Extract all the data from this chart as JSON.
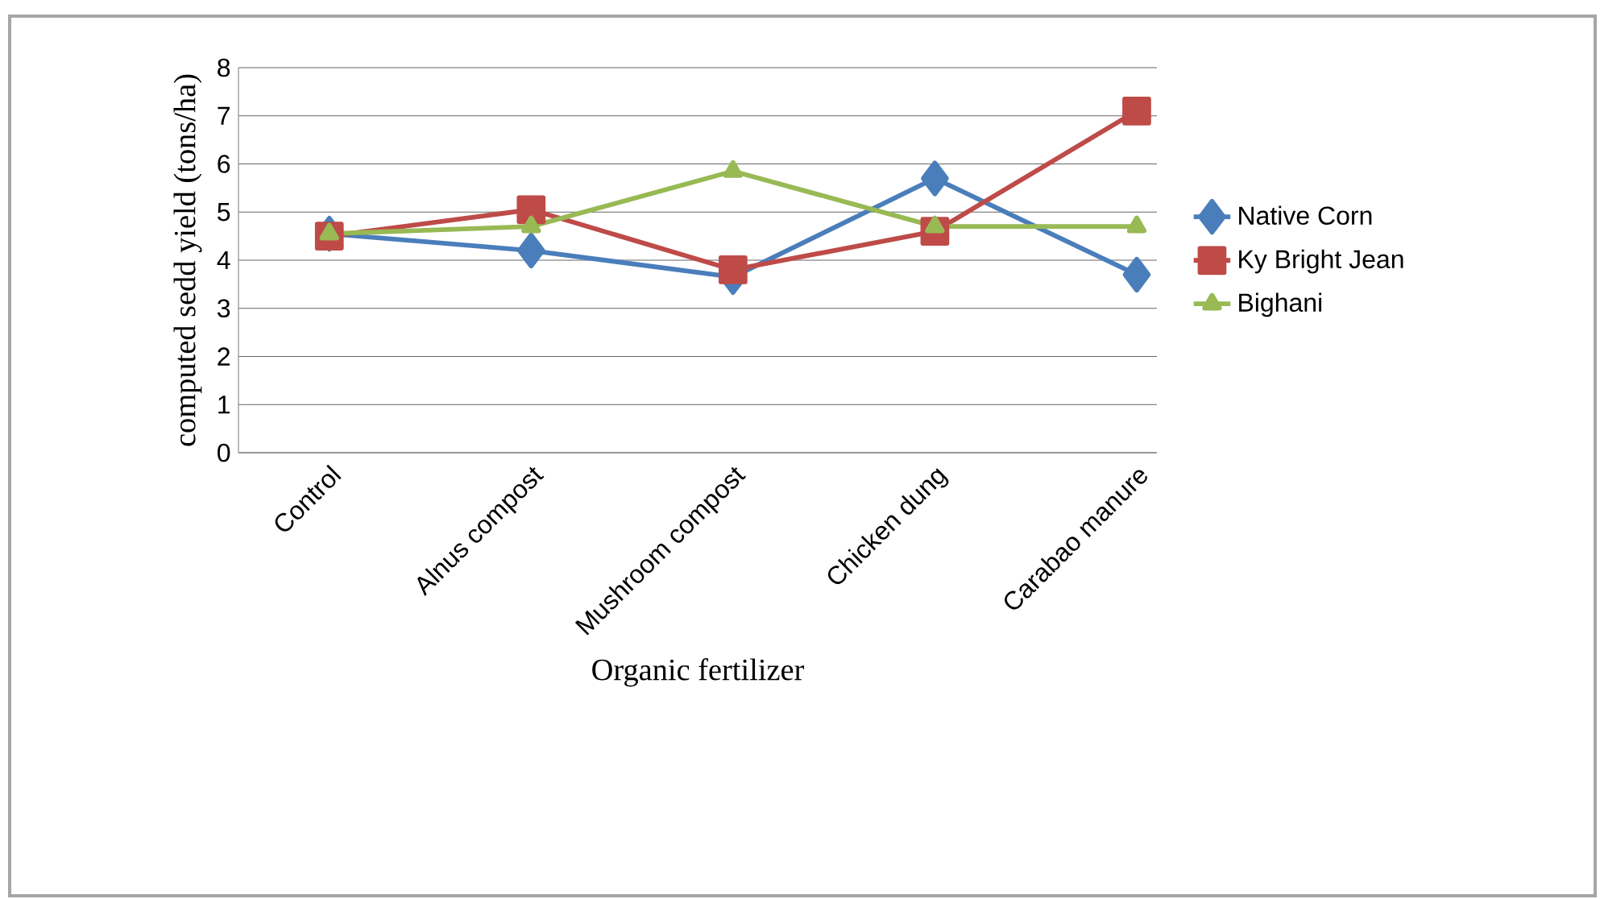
{
  "chart_data": {
    "type": "line",
    "xlabel": "Organic fertilizer",
    "ylabel": "computed sedd yield (tons/ha)",
    "categories": [
      "Control",
      "Alnus compost",
      "Mushroom compost",
      "Chicken dung",
      "Carabao manure"
    ],
    "series": [
      {
        "name": "Native Corn",
        "color": "#4a7ebb",
        "marker": "diamond",
        "values": [
          4.55,
          4.2,
          3.65,
          5.7,
          3.7
        ]
      },
      {
        "name": "Ky Bright Jean",
        "color": "#be4b48",
        "marker": "square",
        "values": [
          4.5,
          5.05,
          3.8,
          4.6,
          7.1
        ]
      },
      {
        "name": "Bighani",
        "color": "#98b954",
        "marker": "triangle",
        "values": [
          4.55,
          4.7,
          5.85,
          4.7,
          4.7
        ]
      }
    ],
    "ylim": [
      0,
      8
    ],
    "yticks": [
      0,
      1,
      2,
      3,
      4,
      5,
      6,
      7,
      8
    ],
    "grid": "y",
    "legend": "right",
    "line_style": "solid"
  }
}
